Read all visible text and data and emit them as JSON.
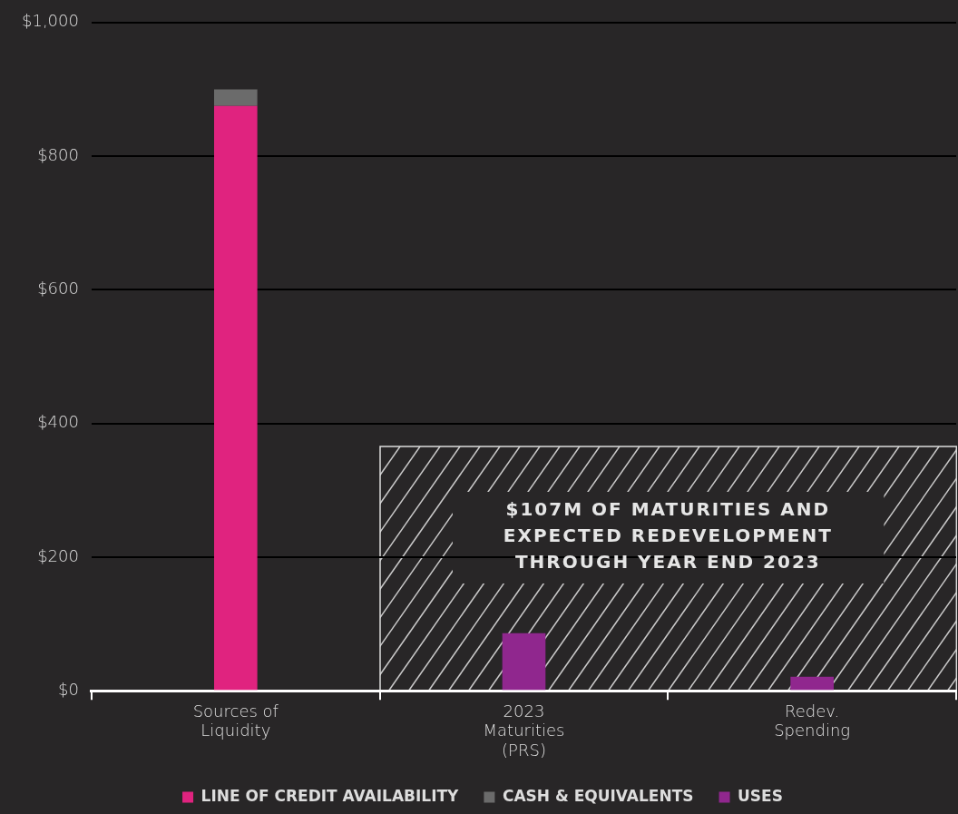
{
  "chart_data": {
    "type": "bar",
    "stacked": true,
    "categories": [
      "Sources of Liquidity",
      "2023 Maturities (PRS)",
      "Redev. Spending"
    ],
    "series": [
      {
        "name": "LINE OF CREDIT AVAILABILITY",
        "color": "#e0237f",
        "values": [
          875,
          null,
          null
        ]
      },
      {
        "name": "CASH & EQUIVALENTS",
        "color": "#6b6b6b",
        "values": [
          25,
          null,
          null
        ]
      },
      {
        "name": "USES",
        "color": "#90278e",
        "values": [
          null,
          86,
          21
        ]
      }
    ],
    "ylim": [
      0,
      1000
    ],
    "yticks": [
      {
        "value": 0,
        "label": "$0"
      },
      {
        "value": 200,
        "label": "$200"
      },
      {
        "value": 400,
        "label": "$400"
      },
      {
        "value": 600,
        "label": "$600"
      },
      {
        "value": 800,
        "label": "$800"
      },
      {
        "value": 1000,
        "label": "$1,000"
      }
    ],
    "grid": "y",
    "legend": "bottom",
    "annotations": [
      "$107M OF MATURITIES AND EXPECTED REDEVELOPMENT THROUGH YEAR END 2023"
    ]
  }
}
